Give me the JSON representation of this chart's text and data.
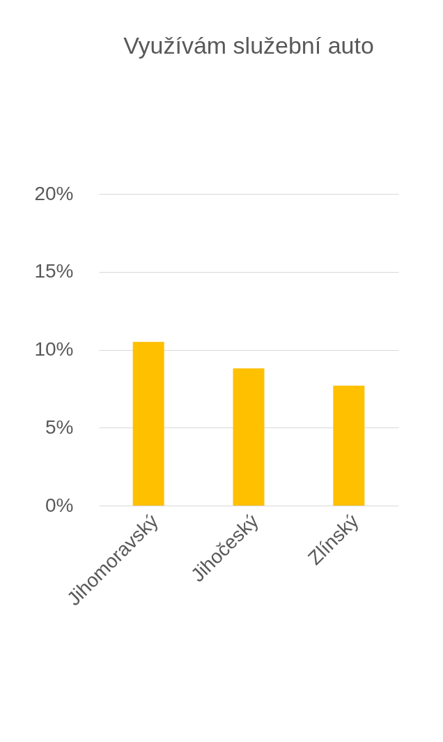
{
  "chart_data": {
    "type": "bar",
    "title": "Využívám služební auto",
    "categories": [
      "Jihomoravský",
      "Jihočeský",
      "Zlínský"
    ],
    "values": [
      10.5,
      8.8,
      7.7
    ],
    "color": "#ffc000",
    "ylim": [
      0,
      20
    ],
    "yticks": [
      {
        "value": 0,
        "label": "0%"
      },
      {
        "value": 5,
        "label": "5%"
      },
      {
        "value": 10,
        "label": "10%"
      },
      {
        "value": 15,
        "label": "15%"
      },
      {
        "value": 20,
        "label": "20%"
      }
    ],
    "grid": "y"
  }
}
